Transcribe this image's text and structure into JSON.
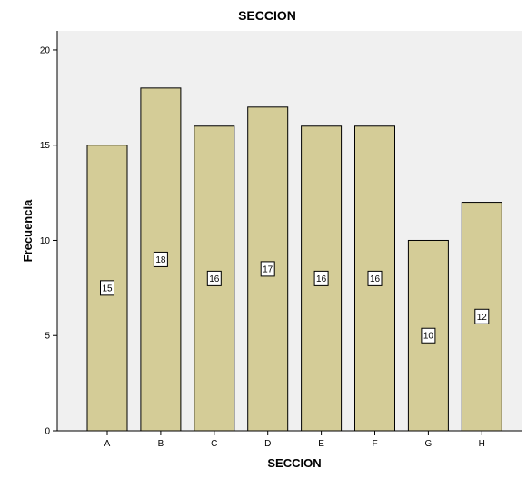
{
  "chart_data": {
    "type": "bar",
    "title": "SECCION",
    "xlabel": "SECCION",
    "ylabel": "Frecuencia",
    "categories": [
      "A",
      "B",
      "C",
      "D",
      "E",
      "F",
      "G",
      "H"
    ],
    "values": [
      15,
      18,
      16,
      17,
      16,
      16,
      10,
      12
    ],
    "data_labels": [
      "15",
      "18",
      "16",
      "17",
      "16",
      "16",
      "10",
      "12"
    ],
    "ylim": [
      0,
      21
    ],
    "yticks": [
      0,
      5,
      10,
      15,
      20
    ],
    "grid": false,
    "legend": "none",
    "colors": {
      "plot_background": "#f0f0f0",
      "bar_fill": "#d4cc97",
      "bar_stroke": "#000000",
      "label_box": "#ffffff"
    }
  }
}
